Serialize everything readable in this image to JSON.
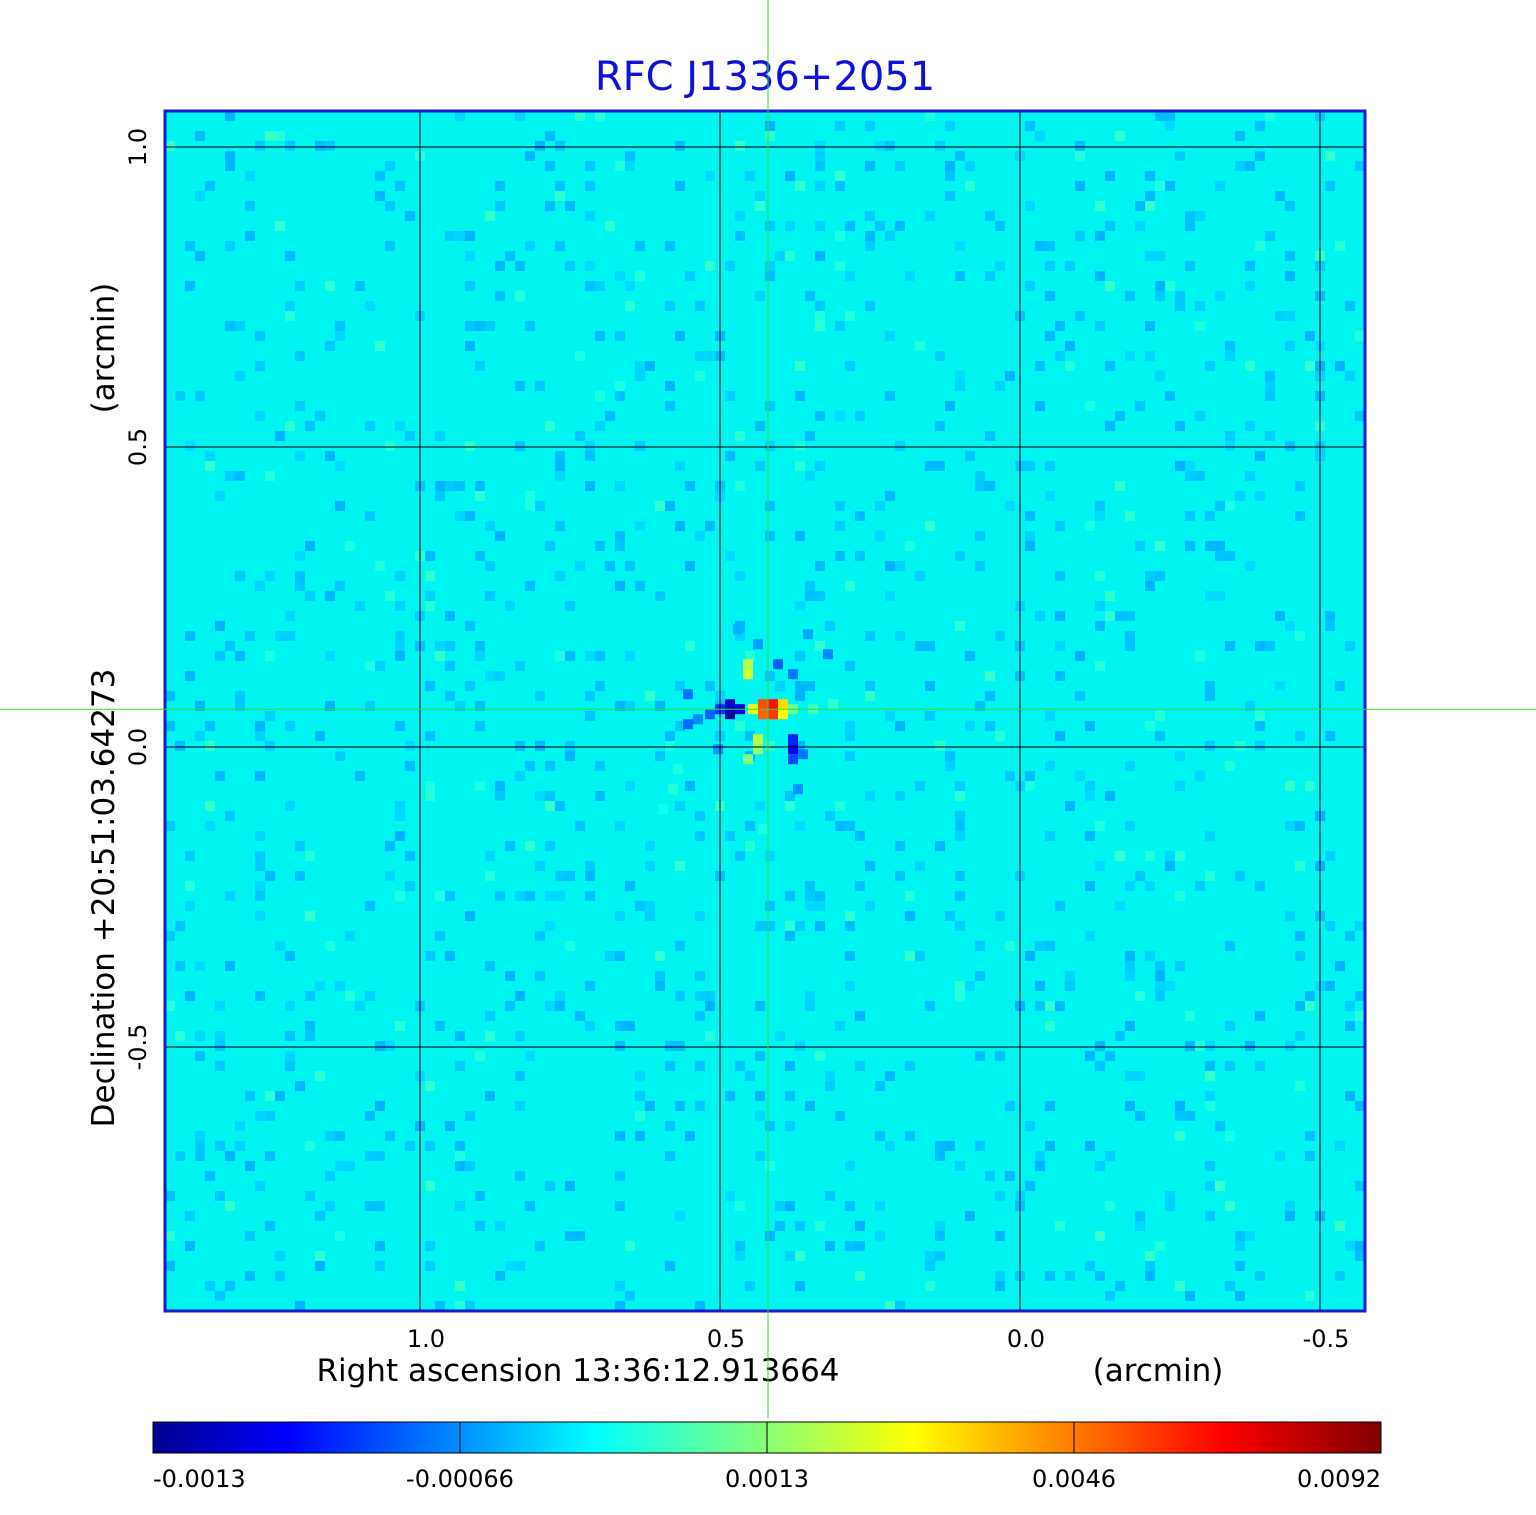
{
  "chart_data": {
    "type": "heatmap",
    "title": "RFC J1336+2051",
    "xlabel": "Right ascension  13:36:12.913664",
    "xunit": "(arcmin)",
    "ylabel": "Declination  +20:51:03.64273",
    "yunit": "(arcmin)",
    "x_ticks": [
      "1.0",
      "0.5",
      "0.0",
      "-0.5"
    ],
    "y_ticks": [
      "1.0",
      "0.5",
      "0.0",
      "-0.5"
    ],
    "x_tick_values": [
      1.0,
      0.5,
      0.0,
      -0.5
    ],
    "y_tick_values": [
      1.0,
      0.5,
      0.0,
      -0.5
    ],
    "xlim": [
      1.425,
      -0.575
    ],
    "ylim": [
      -0.94,
      1.06
    ],
    "grid": true,
    "crosshair": {
      "ra_offset": 0.42,
      "dec_offset": 0.063,
      "color": "#33dd33"
    },
    "colorbar": {
      "colormap": "jet",
      "tick_labels": [
        "-0.0013",
        "-0.00066",
        "0.0013",
        "0.0046",
        "0.0092"
      ],
      "min": -0.0013,
      "max": 0.0092
    },
    "source": {
      "ra_offset": 0.42,
      "dec_offset": 0.063,
      "peak": 0.0092
    },
    "colors": {
      "title": "#1010dd",
      "frame": "#1a1ad0",
      "background_emission": "#00f4f0",
      "grid": "#000000"
    }
  }
}
